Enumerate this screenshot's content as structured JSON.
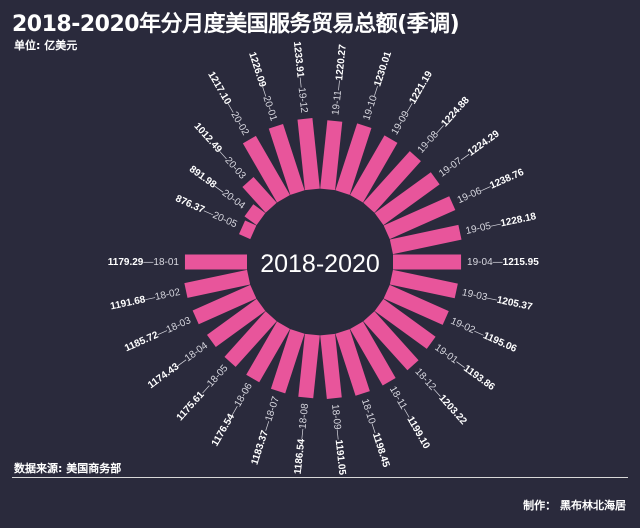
{
  "title": "2018-2020年分月度美国服务贸易总额(季调)",
  "unit": "单位: 亿美元",
  "source": "数据来源: 美国商务部",
  "credit": "制作：  黑布林北海居",
  "chart_data": {
    "type": "bar",
    "layout": "radial",
    "center_label": "2018-2020",
    "bar_color": "#e8559b",
    "background": "#2a2a3c",
    "categories": [
      "18-01",
      "18-02",
      "18-03",
      "18-04",
      "18-05",
      "18-06",
      "18-07",
      "18-08",
      "18-09",
      "18-10",
      "18-11",
      "18-12",
      "19-01",
      "19-02",
      "19-03",
      "19-04",
      "19-05",
      "19-06",
      "19-07",
      "19-08",
      "19-09",
      "19-10",
      "19-11",
      "19-12",
      "20-01",
      "20-02",
      "20-03",
      "20-04",
      "20-05"
    ],
    "values": [
      1179.29,
      1191.68,
      1185.72,
      1174.43,
      1175.61,
      1176.54,
      1183.37,
      1186.54,
      1191.05,
      1198.45,
      1199.1,
      1203.22,
      1193.86,
      1195.06,
      1205.37,
      1215.95,
      1228.18,
      1238.76,
      1224.29,
      1224.88,
      1221.19,
      1230.01,
      1220.27,
      1233.91,
      1226.09,
      1217.1,
      1012.49,
      891.98,
      876.37
    ],
    "value_labels": [
      "1179.29",
      "1191.68",
      "1185.72",
      "1174.43",
      "1175.61",
      "1176.54",
      "1183.37",
      "1186.54",
      "1191.05",
      "1198.45",
      "1199.10",
      "1203.22",
      "1193.86",
      "1195.06",
      "1205.37",
      "1215.95",
      "1228.18",
      "1238.76",
      "1224.29",
      "1224.88",
      "1221.19",
      "1230.01",
      "1220.27",
      "1233.91",
      "1226.09",
      "1217.10",
      "1012.49",
      "891.98",
      "876.37"
    ],
    "separator": "—"
  }
}
